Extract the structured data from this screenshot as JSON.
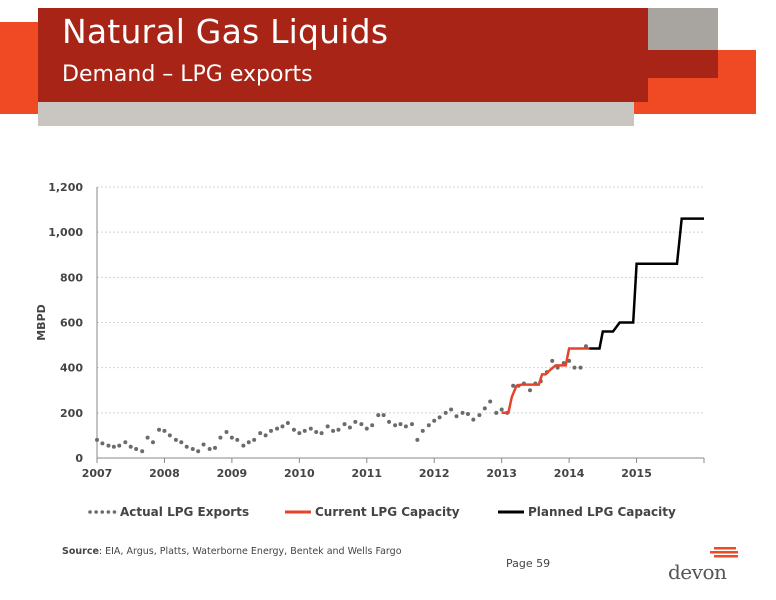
{
  "header": {
    "title": "Natural Gas Liquids",
    "subtitle": "Demand – LPG exports"
  },
  "colors": {
    "banner": "#a72416",
    "accent_orange": "#ef4a23",
    "gray": "#a8a5a1",
    "actual_series": "#6b6b6b",
    "current_series": "#e8432a",
    "planned_series": "#000000"
  },
  "chart_data": {
    "type": "line",
    "title": "",
    "xlabel": "",
    "ylabel": "MBPD",
    "xlim": [
      2007,
      2016
    ],
    "ylim": [
      0,
      1200
    ],
    "x_ticks": [
      "2007",
      "2008",
      "2009",
      "2010",
      "2011",
      "2012",
      "2013",
      "2014",
      "2015"
    ],
    "y_ticks": [
      "0",
      "200",
      "400",
      "600",
      "800",
      "1,000",
      "1,200"
    ],
    "grid": true,
    "legend_position": "bottom",
    "series": [
      {
        "name": "Actual LPG Exports",
        "style": "dotted",
        "x": [
          2007.0,
          2007.08,
          2007.17,
          2007.25,
          2007.33,
          2007.42,
          2007.5,
          2007.58,
          2007.67,
          2007.75,
          2007.83,
          2007.92,
          2008.0,
          2008.08,
          2008.17,
          2008.25,
          2008.33,
          2008.42,
          2008.5,
          2008.58,
          2008.67,
          2008.75,
          2008.83,
          2008.92,
          2009.0,
          2009.08,
          2009.17,
          2009.25,
          2009.33,
          2009.42,
          2009.5,
          2009.58,
          2009.67,
          2009.75,
          2009.83,
          2009.92,
          2010.0,
          2010.08,
          2010.17,
          2010.25,
          2010.33,
          2010.42,
          2010.5,
          2010.58,
          2010.67,
          2010.75,
          2010.83,
          2010.92,
          2011.0,
          2011.08,
          2011.17,
          2011.25,
          2011.33,
          2011.42,
          2011.5,
          2011.58,
          2011.67,
          2011.75,
          2011.83,
          2011.92,
          2012.0,
          2012.08,
          2012.17,
          2012.25,
          2012.33,
          2012.42,
          2012.5,
          2012.58,
          2012.67,
          2012.75,
          2012.83,
          2012.92,
          2013.0,
          2013.08,
          2013.17,
          2013.25,
          2013.33,
          2013.42,
          2013.5,
          2013.58,
          2013.67,
          2013.75,
          2013.83,
          2013.92,
          2014.0,
          2014.08,
          2014.17,
          2014.25
        ],
        "y": [
          80,
          65,
          55,
          50,
          55,
          70,
          50,
          40,
          30,
          90,
          70,
          125,
          120,
          100,
          80,
          70,
          50,
          40,
          30,
          60,
          40,
          45,
          90,
          115,
          90,
          80,
          55,
          70,
          80,
          110,
          100,
          120,
          130,
          140,
          155,
          125,
          110,
          120,
          130,
          115,
          110,
          140,
          120,
          125,
          150,
          135,
          160,
          150,
          130,
          145,
          190,
          190,
          160,
          145,
          150,
          140,
          150,
          80,
          120,
          145,
          165,
          180,
          200,
          215,
          185,
          200,
          195,
          170,
          190,
          220,
          250,
          200,
          215,
          200,
          320,
          320,
          330,
          300,
          330,
          340,
          380,
          430,
          400,
          420,
          430,
          400,
          400,
          495
        ]
      },
      {
        "name": "Current LPG Capacity",
        "style": "solid",
        "x": [
          2013.0,
          2013.1,
          2013.15,
          2013.22,
          2013.3,
          2013.55,
          2013.6,
          2013.65,
          2013.72,
          2013.8,
          2013.95,
          2014.0,
          2014.3
        ],
        "y": [
          200,
          200,
          270,
          320,
          325,
          325,
          370,
          370,
          390,
          410,
          410,
          485,
          485
        ]
      },
      {
        "name": "Planned LPG Capacity",
        "style": "solid",
        "x": [
          2014.3,
          2014.45,
          2014.5,
          2014.65,
          2014.75,
          2014.95,
          2015.0,
          2015.6,
          2015.67,
          2016.0
        ],
        "y": [
          485,
          485,
          560,
          560,
          600,
          600,
          860,
          860,
          1060,
          1060
        ]
      }
    ]
  },
  "legend": {
    "actual": "Actual LPG Exports",
    "current": "Current LPG Capacity",
    "planned": "Planned LPG Capacity"
  },
  "footer": {
    "source_label": "Source",
    "source_text": ": EIA, Argus, Platts, Waterborne Energy, Bentek and Wells Fargo",
    "page": "Page 59",
    "logo": "devon",
    "logo_icon": "devon-stripes-icon"
  }
}
